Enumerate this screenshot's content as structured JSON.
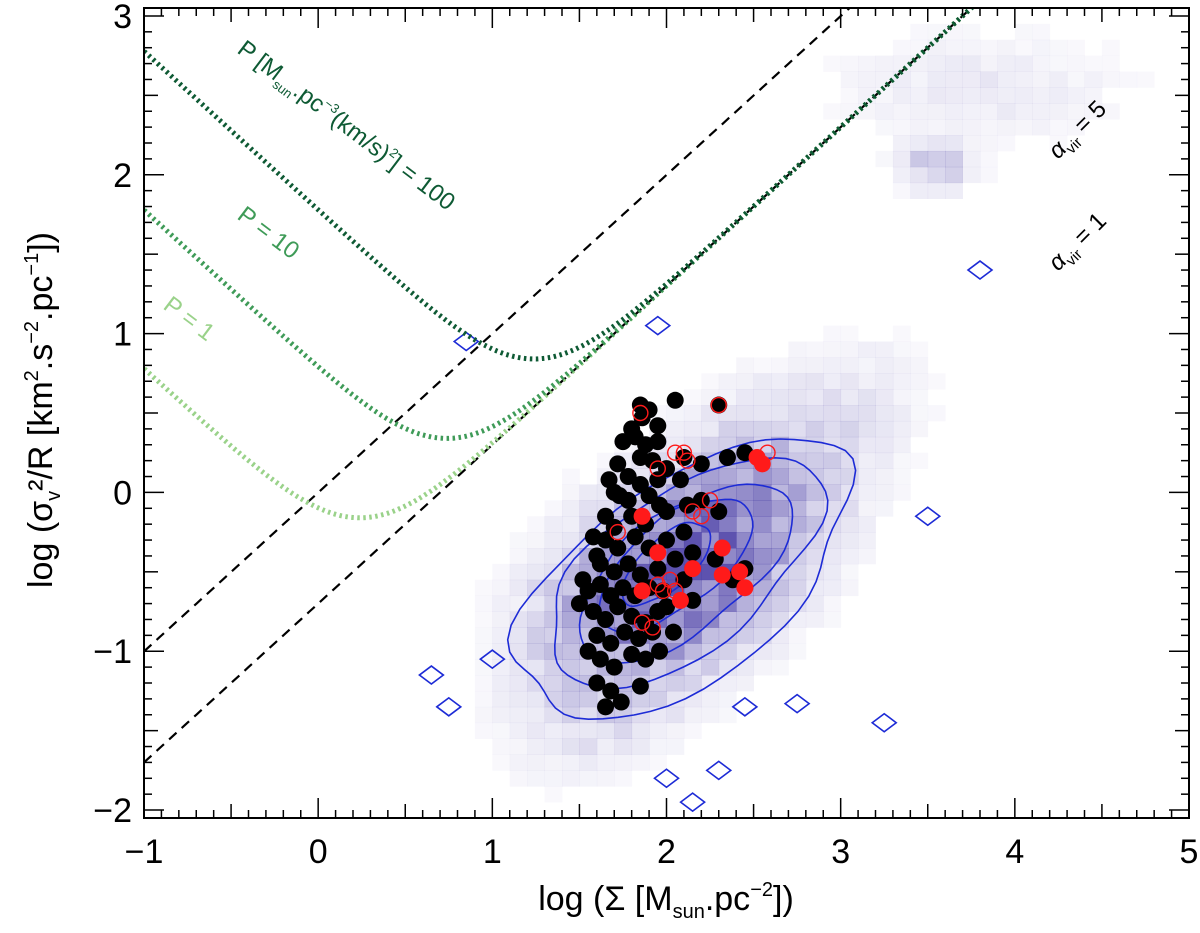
{
  "chart_data": {
    "type": "scatter",
    "title": "",
    "xlabel": {
      "pre": "log (Σ [M",
      "sub": "sun",
      "mid": ".pc",
      "sup": "−2",
      "post": "])"
    },
    "ylabel": {
      "p1": "log (σ",
      "sub1": "v",
      "p2": "²/R [km",
      "sup1": "2",
      "p3": ".s",
      "sup2": "−2",
      "p4": ".pc",
      "sup3": "−1",
      "p5": "])"
    },
    "xlim": [
      -1,
      5
    ],
    "ylim": [
      -2.05,
      3.05
    ],
    "x_ticks": [
      "−1",
      "0",
      "1",
      "2",
      "3",
      "4",
      "5"
    ],
    "y_ticks": [
      "−2",
      "−1",
      "0",
      "1",
      "2",
      "3"
    ],
    "x_tick_values": [
      -1,
      0,
      1,
      2,
      3,
      4,
      5
    ],
    "y_tick_values": [
      -2,
      -1,
      0,
      1,
      2,
      3
    ],
    "grid": false,
    "virial_lines": [
      {
        "alpha": 1,
        "label_symbol": "α",
        "label_sub": "vir",
        "label_rest": " = 1"
      },
      {
        "alpha": 5,
        "label_symbol": "α",
        "label_sub": "vir",
        "label_rest": " = 5"
      }
    ],
    "pressure_curves": [
      {
        "P": 1,
        "label": "P = 1",
        "color": "#9ad28a"
      },
      {
        "P": 10,
        "label": "P = 10",
        "color": "#3f9b58"
      },
      {
        "P": 100,
        "label_pre": "P [M",
        "label_sub": "sun",
        "label_mid": ".pc",
        "label_sup1": "−3",
        "label_mid2": "(km/s)",
        "label_sup2": "2",
        "label_post": "] = 100",
        "color": "#0e5a34"
      }
    ],
    "black_points": [
      [
        1.85,
        0.55
      ],
      [
        1.86,
        0.47
      ],
      [
        1.9,
        0.52
      ],
      [
        1.95,
        0.42
      ],
      [
        2.05,
        0.58
      ],
      [
        1.8,
        0.4
      ],
      [
        1.82,
        0.35
      ],
      [
        1.75,
        0.32
      ],
      [
        1.88,
        0.3
      ],
      [
        1.95,
        0.32
      ],
      [
        1.72,
        0.18
      ],
      [
        1.85,
        0.22
      ],
      [
        1.92,
        0.2
      ],
      [
        2.0,
        0.15
      ],
      [
        1.78,
        0.1
      ],
      [
        1.85,
        0.05
      ],
      [
        1.95,
        0.08
      ],
      [
        2.1,
        0.22
      ],
      [
        2.2,
        0.18
      ],
      [
        2.35,
        0.22
      ],
      [
        1.7,
        0.0
      ],
      [
        1.78,
        -0.05
      ],
      [
        1.9,
        -0.02
      ],
      [
        1.96,
        -0.08
      ],
      [
        1.65,
        -0.15
      ],
      [
        1.7,
        -0.22
      ],
      [
        1.8,
        -0.15
      ],
      [
        1.88,
        -0.2
      ],
      [
        2.0,
        -0.12
      ],
      [
        2.12,
        -0.08
      ],
      [
        2.2,
        -0.05
      ],
      [
        2.3,
        -0.12
      ],
      [
        1.58,
        -0.28
      ],
      [
        1.65,
        -0.3
      ],
      [
        1.72,
        -0.35
      ],
      [
        1.82,
        -0.28
      ],
      [
        1.9,
        -0.35
      ],
      [
        2.0,
        -0.3
      ],
      [
        2.1,
        -0.25
      ],
      [
        1.62,
        -0.45
      ],
      [
        1.7,
        -0.5
      ],
      [
        1.78,
        -0.45
      ],
      [
        1.85,
        -0.52
      ],
      [
        1.95,
        -0.48
      ],
      [
        2.05,
        -0.42
      ],
      [
        2.15,
        -0.38
      ],
      [
        1.55,
        -0.62
      ],
      [
        1.62,
        -0.58
      ],
      [
        1.68,
        -0.65
      ],
      [
        1.75,
        -0.6
      ],
      [
        1.82,
        -0.65
      ],
      [
        1.9,
        -0.6
      ],
      [
        1.98,
        -0.62
      ],
      [
        2.1,
        -0.55
      ],
      [
        1.58,
        -0.75
      ],
      [
        1.65,
        -0.8
      ],
      [
        1.72,
        -0.72
      ],
      [
        1.8,
        -0.78
      ],
      [
        1.88,
        -0.82
      ],
      [
        1.95,
        -0.75
      ],
      [
        1.6,
        -0.9
      ],
      [
        1.68,
        -0.95
      ],
      [
        1.76,
        -0.88
      ],
      [
        1.84,
        -0.92
      ],
      [
        1.92,
        -0.88
      ],
      [
        1.62,
        -1.05
      ],
      [
        1.7,
        -1.1
      ],
      [
        1.8,
        -1.02
      ],
      [
        1.88,
        -1.05
      ],
      [
        1.6,
        -1.2
      ],
      [
        1.68,
        -1.25
      ],
      [
        1.52,
        -0.55
      ],
      [
        1.5,
        -0.7
      ],
      [
        1.55,
        -1.0
      ],
      [
        1.65,
        -1.35
      ],
      [
        1.85,
        -1.22
      ],
      [
        2.45,
        0.25
      ],
      [
        2.3,
        0.55
      ],
      [
        2.0,
        -0.72
      ],
      [
        2.15,
        -0.68
      ],
      [
        2.28,
        -0.42
      ],
      [
        2.38,
        -0.55
      ],
      [
        2.45,
        -0.48
      ],
      [
        1.73,
        -0.02
      ],
      [
        1.67,
        0.08
      ],
      [
        2.08,
        0.08
      ],
      [
        1.6,
        -0.4
      ],
      [
        1.74,
        -1.32
      ],
      [
        1.96,
        -1.0
      ],
      [
        2.04,
        -0.88
      ]
    ],
    "red_filled": [
      [
        1.86,
        -0.15
      ],
      [
        1.95,
        -0.38
      ],
      [
        2.15,
        -0.48
      ],
      [
        2.32,
        -0.35
      ],
      [
        2.32,
        -0.52
      ],
      [
        2.42,
        -0.5
      ],
      [
        2.45,
        -0.6
      ],
      [
        1.86,
        -0.62
      ],
      [
        2.08,
        -0.68
      ],
      [
        2.52,
        0.22
      ],
      [
        2.55,
        0.18
      ]
    ],
    "red_open": [
      [
        1.85,
        0.5
      ],
      [
        1.95,
        0.15
      ],
      [
        2.1,
        0.25
      ],
      [
        2.12,
        0.2
      ],
      [
        2.05,
        0.25
      ],
      [
        2.2,
        -0.15
      ],
      [
        2.15,
        -0.12
      ],
      [
        2.25,
        -0.05
      ],
      [
        2.3,
        0.55
      ],
      [
        2.58,
        0.25
      ],
      [
        1.95,
        -0.58
      ],
      [
        2.05,
        -0.62
      ],
      [
        2.02,
        -0.55
      ],
      [
        1.86,
        -0.82
      ],
      [
        1.92,
        -0.85
      ],
      [
        1.98,
        -0.62
      ],
      [
        1.72,
        -0.25
      ]
    ]
  }
}
